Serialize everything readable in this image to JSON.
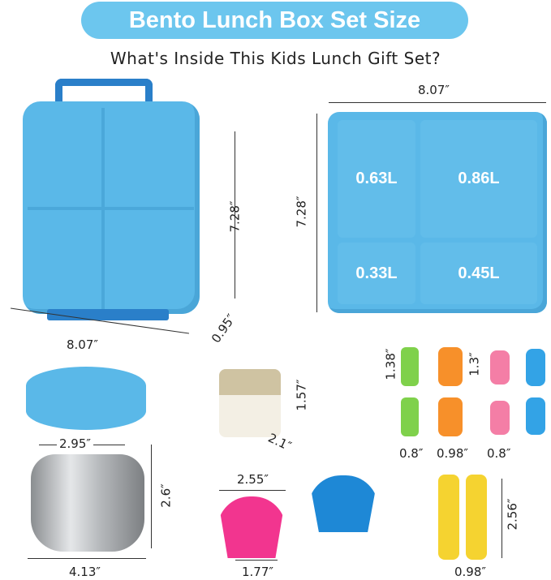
{
  "header": {
    "title": "Bento Lunch Box Set Size",
    "subtitle": "What's Inside This Kids Lunch Gift Set?",
    "banner_color": "#6cc6ee"
  },
  "lunch_box": {
    "height": "7.28″",
    "width": "8.07″",
    "depth": "0.95″",
    "color": "#5ab8e8"
  },
  "tray": {
    "width": "8.07″",
    "height": "7.28″",
    "compartments": [
      "0.63L",
      "0.86L",
      "0.33L",
      "0.45L"
    ]
  },
  "forks": {
    "height_large": "1.38″",
    "height_small": "1.3″",
    "widths": [
      "0.8″",
      "0.98″",
      "0.8″"
    ]
  },
  "sauce_container": {
    "height": "1.57″",
    "width": "2.1″"
  },
  "food_jar": {
    "lid_width": "2.95″",
    "height": "2.6″",
    "width": "4.13″"
  },
  "cupcake_liners": {
    "top": "2.55″",
    "bottom": "1.77″"
  },
  "giraffe_forks": {
    "height": "2.56″",
    "width": "0.98″"
  }
}
